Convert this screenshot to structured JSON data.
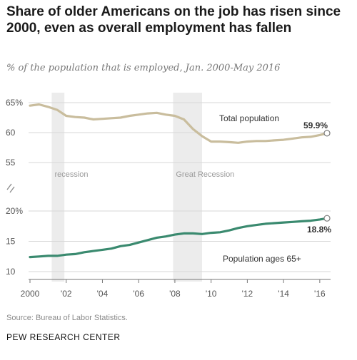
{
  "header": {
    "title": "Share of older Americans on the job has risen since 2000, even as overall employment has fallen",
    "subtitle": "% of the population that is employed, Jan. 2000-May 2016"
  },
  "footer": {
    "source": "Source: Bureau of Labor Statistics.",
    "logo": "PEW RESEARCH CENTER"
  },
  "colors": {
    "total": "#c9bd9d",
    "older": "#3a8a6f",
    "recession": "#ececec",
    "grid": "#d7d7d7",
    "axis_text": "#555555"
  },
  "chart_data": {
    "type": "line",
    "xlabel": "",
    "x_ticks": [
      "2000",
      "'02",
      "'04",
      "'06",
      "'08",
      "'10",
      "'12",
      "'14",
      "'16"
    ],
    "xlim": [
      2000,
      2016.4
    ],
    "recessions": [
      {
        "label": "recession",
        "start": 2001.2,
        "end": 2001.9
      },
      {
        "label": "Great Recession",
        "start": 2007.9,
        "end": 2009.5
      }
    ],
    "panels": [
      {
        "name": "Total population",
        "ylim": [
          53,
          66
        ],
        "y_ticks": [
          "65%",
          "60",
          "55"
        ],
        "y_tick_values": [
          65,
          60,
          55
        ],
        "end_label": "59.9%",
        "points": [
          [
            2000.0,
            64.5
          ],
          [
            2000.5,
            64.7
          ],
          [
            2001.0,
            64.3
          ],
          [
            2001.5,
            63.8
          ],
          [
            2002.0,
            62.8
          ],
          [
            2002.5,
            62.6
          ],
          [
            2003.0,
            62.5
          ],
          [
            2003.5,
            62.2
          ],
          [
            2004.0,
            62.3
          ],
          [
            2004.5,
            62.4
          ],
          [
            2005.0,
            62.5
          ],
          [
            2005.5,
            62.8
          ],
          [
            2006.0,
            63.0
          ],
          [
            2006.5,
            63.2
          ],
          [
            2007.0,
            63.3
          ],
          [
            2007.5,
            63.0
          ],
          [
            2008.0,
            62.8
          ],
          [
            2008.5,
            62.2
          ],
          [
            2009.0,
            60.6
          ],
          [
            2009.5,
            59.4
          ],
          [
            2010.0,
            58.5
          ],
          [
            2010.5,
            58.5
          ],
          [
            2011.0,
            58.4
          ],
          [
            2011.5,
            58.3
          ],
          [
            2012.0,
            58.5
          ],
          [
            2012.5,
            58.6
          ],
          [
            2013.0,
            58.6
          ],
          [
            2013.5,
            58.7
          ],
          [
            2014.0,
            58.8
          ],
          [
            2014.5,
            59.0
          ],
          [
            2015.0,
            59.2
          ],
          [
            2015.5,
            59.3
          ],
          [
            2016.0,
            59.6
          ],
          [
            2016.4,
            59.9
          ]
        ]
      },
      {
        "name": "Population ages 65+",
        "ylim": [
          10,
          20.8
        ],
        "y_ticks": [
          "20%",
          "15",
          "10"
        ],
        "y_tick_values": [
          20,
          15,
          10
        ],
        "end_label": "18.8%",
        "points": [
          [
            2000.0,
            12.4
          ],
          [
            2000.5,
            12.5
          ],
          [
            2001.0,
            12.6
          ],
          [
            2001.5,
            12.6
          ],
          [
            2002.0,
            12.8
          ],
          [
            2002.5,
            12.9
          ],
          [
            2003.0,
            13.2
          ],
          [
            2003.5,
            13.4
          ],
          [
            2004.0,
            13.6
          ],
          [
            2004.5,
            13.8
          ],
          [
            2005.0,
            14.2
          ],
          [
            2005.5,
            14.4
          ],
          [
            2006.0,
            14.8
          ],
          [
            2006.5,
            15.2
          ],
          [
            2007.0,
            15.6
          ],
          [
            2007.5,
            15.8
          ],
          [
            2008.0,
            16.1
          ],
          [
            2008.5,
            16.3
          ],
          [
            2009.0,
            16.3
          ],
          [
            2009.5,
            16.2
          ],
          [
            2010.0,
            16.4
          ],
          [
            2010.5,
            16.5
          ],
          [
            2011.0,
            16.8
          ],
          [
            2011.5,
            17.2
          ],
          [
            2012.0,
            17.5
          ],
          [
            2012.5,
            17.7
          ],
          [
            2013.0,
            17.9
          ],
          [
            2013.5,
            18.0
          ],
          [
            2014.0,
            18.1
          ],
          [
            2014.5,
            18.2
          ],
          [
            2015.0,
            18.3
          ],
          [
            2015.5,
            18.4
          ],
          [
            2016.0,
            18.6
          ],
          [
            2016.4,
            18.8
          ]
        ]
      }
    ]
  }
}
